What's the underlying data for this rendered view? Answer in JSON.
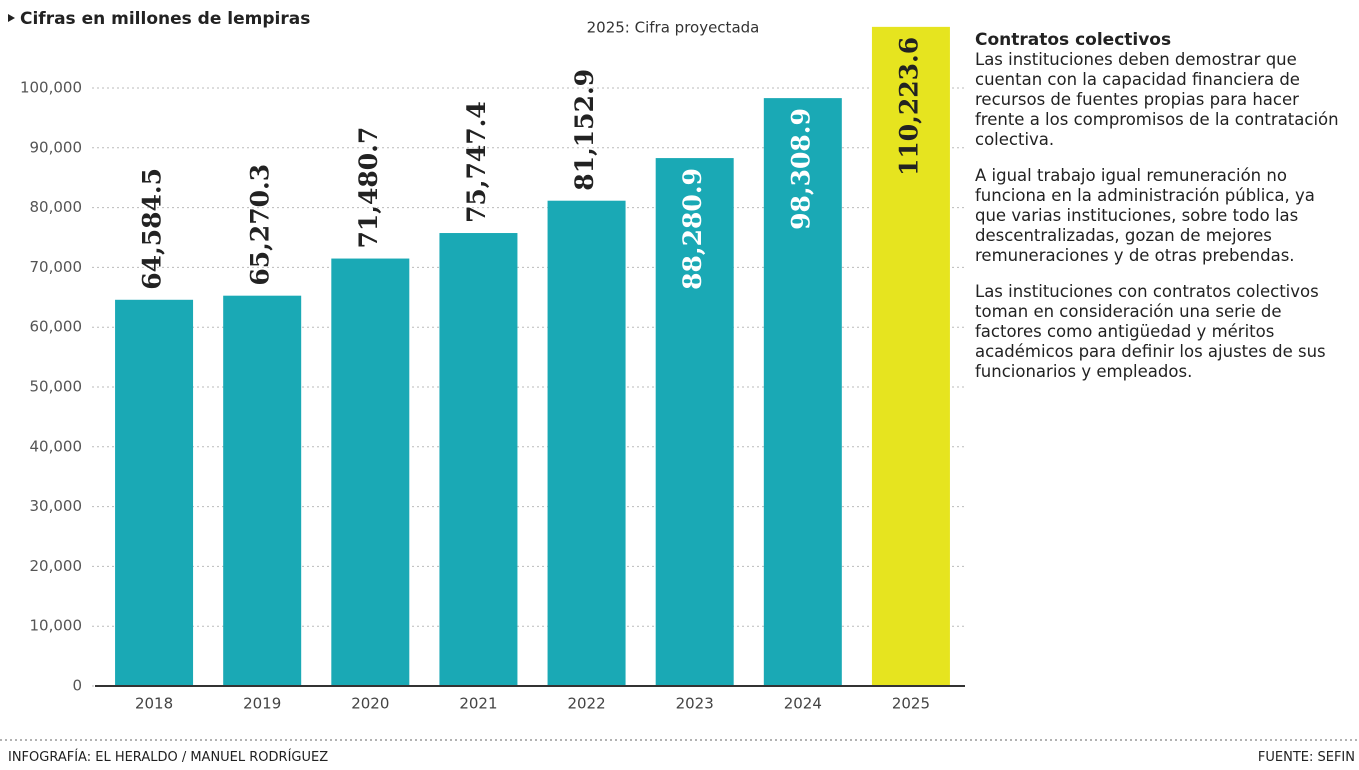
{
  "chart_data": {
    "type": "bar",
    "unit_note": "Cifras en millones de lempiras",
    "subtitle": "2025: Cifra proyectada",
    "categories": [
      "2018",
      "2019",
      "2020",
      "2021",
      "2022",
      "2023",
      "2024",
      "2025"
    ],
    "values": [
      64584.5,
      65270.3,
      71480.7,
      75747.4,
      81152.9,
      88280.9,
      98308.9,
      110223.6
    ],
    "value_labels": [
      "64,584.5",
      "65,270.3",
      "71,480.7",
      "75,747.4",
      "81,152.9",
      "88,280.9",
      "98,308.9",
      "110,223.6"
    ],
    "colors": [
      "#1aa9b5",
      "#1aa9b5",
      "#1aa9b5",
      "#1aa9b5",
      "#1aa9b5",
      "#1aa9b5",
      "#1aa9b5",
      "#e6e41f"
    ],
    "ylim": [
      0,
      100000
    ],
    "yticks": [
      0,
      {
        "value": 10000,
        "label": "10,000"
      },
      {
        "value": 20000,
        "label": "20,000"
      },
      {
        "value": 30000,
        "label": "30,000"
      },
      {
        "value": 40000,
        "label": "40,000"
      },
      {
        "value": 50000,
        "label": "50,000"
      },
      {
        "value": 60000,
        "label": "60,000"
      },
      {
        "value": 70000,
        "label": "70,000"
      },
      {
        "value": 80000,
        "label": "80,000"
      },
      {
        "value": 90000,
        "label": "90,000"
      },
      {
        "value": 100000,
        "label": "100,000"
      }
    ],
    "grid": true
  },
  "sidebar": {
    "title": "Contratos colectivos",
    "paragraphs": [
      "Las instituciones deben demostrar que cuentan con la capacidad financiera de recursos de fuentes propias para hacer frente a los compromisos de la contratación colectiva.",
      "A igual trabajo igual remuneración no funciona en la administración pública, ya que varias instituciones, sobre todo las descentralizadas, gozan de mejores remuneraciones y de otras prebendas.",
      "Las instituciones con contratos colectivos toman en consideración una serie de factores como antigüedad y méritos académicos para definir los ajustes de sus funcionarios y empleados."
    ]
  },
  "footer": {
    "credit": "INFOGRAFÍA: EL HERALDO / MANUEL RODRÍGUEZ",
    "source": "FUENTE: SEFIN"
  }
}
